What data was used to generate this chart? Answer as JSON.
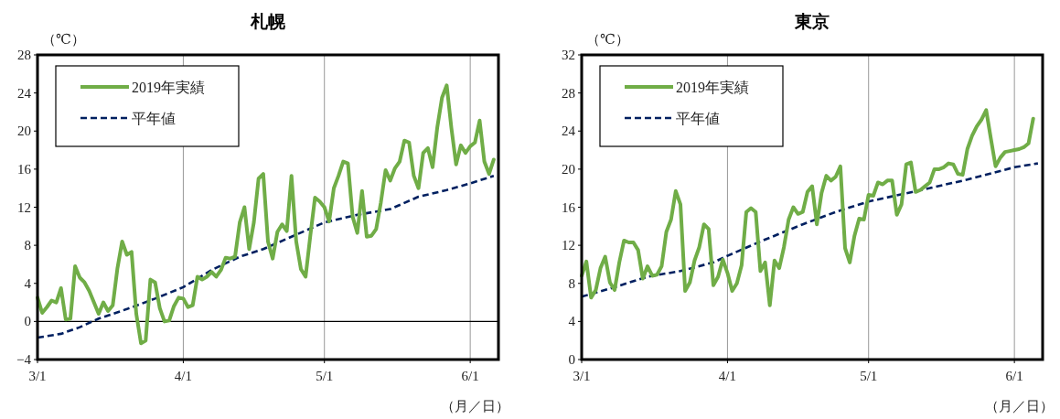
{
  "chart_data": [
    {
      "type": "line",
      "title": "札幌",
      "ylabel": "（℃）",
      "xlabel": "（月／日）",
      "xlim": [
        "--03-01",
        "--06-07"
      ],
      "xticks": [
        {
          "value": "--03-01",
          "label": "3/1"
        },
        {
          "value": "--04-01",
          "label": "4/1"
        },
        {
          "value": "--05-01",
          "label": "5/1"
        },
        {
          "value": "--06-01",
          "label": "6/1"
        }
      ],
      "ylim": [
        -4,
        28
      ],
      "yticks": [
        -4,
        0,
        4,
        8,
        12,
        16,
        20,
        24,
        28
      ],
      "grid": "x",
      "legend": "top left",
      "ref_lines": [
        {
          "axis": "y",
          "value": 0,
          "color": "#000000"
        }
      ],
      "series": [
        {
          "name": "2019年実績",
          "color": "#70ad47",
          "line_style": "solid",
          "x": [
            "--03-01",
            "--03-02",
            "--03-03",
            "--03-04",
            "--03-05",
            "--03-06",
            "--03-07",
            "--03-08",
            "--03-09",
            "--03-10",
            "--03-11",
            "--03-12",
            "--03-13",
            "--03-14",
            "--03-15",
            "--03-16",
            "--03-17",
            "--03-18",
            "--03-19",
            "--03-20",
            "--03-21",
            "--03-22",
            "--03-23",
            "--03-24",
            "--03-25",
            "--03-26",
            "--03-27",
            "--03-28",
            "--03-29",
            "--03-30",
            "--03-31",
            "--04-01",
            "--04-02",
            "--04-03",
            "--04-04",
            "--04-05",
            "--04-06",
            "--04-07",
            "--04-08",
            "--04-09",
            "--04-10",
            "--04-11",
            "--04-12",
            "--04-13",
            "--04-14",
            "--04-15",
            "--04-16",
            "--04-17",
            "--04-18",
            "--04-19",
            "--04-20",
            "--04-21",
            "--04-22",
            "--04-23",
            "--04-24",
            "--04-25",
            "--04-26",
            "--04-27",
            "--04-28",
            "--04-29",
            "--04-30",
            "--05-01",
            "--05-02",
            "--05-03",
            "--05-04",
            "--05-05",
            "--05-06",
            "--05-07",
            "--05-08",
            "--05-09",
            "--05-10",
            "--05-11",
            "--05-12",
            "--05-13",
            "--05-14",
            "--05-15",
            "--05-16",
            "--05-17",
            "--05-18",
            "--05-19",
            "--05-20",
            "--05-21",
            "--05-22",
            "--05-23",
            "--05-24",
            "--05-25",
            "--05-26",
            "--05-27",
            "--05-28",
            "--05-29",
            "--05-30",
            "--05-31",
            "--06-01",
            "--06-02",
            "--06-03",
            "--06-04",
            "--06-05",
            "--06-06"
          ],
          "values": [
            2.5,
            0.9,
            1.5,
            2.2,
            2.0,
            3.5,
            0.2,
            0.3,
            5.8,
            4.6,
            4.1,
            3.2,
            2.0,
            0.8,
            2.0,
            1.1,
            1.7,
            5.6,
            8.4,
            7.0,
            7.3,
            0.8,
            -2.3,
            -2.0,
            4.4,
            4.1,
            1.4,
            0.0,
            0.1,
            1.6,
            2.5,
            2.4,
            1.5,
            1.7,
            4.7,
            4.4,
            4.7,
            5.2,
            4.7,
            5.4,
            6.7,
            6.6,
            6.8,
            10.4,
            12.0,
            7.6,
            10.4,
            15.0,
            15.5,
            8.4,
            6.6,
            9.4,
            10.2,
            9.5,
            15.3,
            8.4,
            5.5,
            4.7,
            9.0,
            13.0,
            12.6,
            12.0,
            10.5,
            14.0,
            15.3,
            16.8,
            16.6,
            11.0,
            9.3,
            13.7,
            8.9,
            9.0,
            9.7,
            12.5,
            15.9,
            14.8,
            16.1,
            16.8,
            19.0,
            18.8,
            15.3,
            14.0,
            17.7,
            18.2,
            16.2,
            20.4,
            23.5,
            24.8,
            20.3,
            16.5,
            18.5,
            17.7,
            18.4,
            18.8,
            21.1,
            16.8,
            15.5,
            17.0
          ]
        },
        {
          "name": "平年値",
          "color": "#002060",
          "line_style": "dashed",
          "x": [
            "--03-01",
            "--03-06",
            "--03-10",
            "--03-14",
            "--03-20",
            "--03-26",
            "--04-01",
            "--04-07",
            "--04-13",
            "--04-18",
            "--04-24",
            "--05-01",
            "--05-08",
            "--05-15",
            "--05-21",
            "--05-27",
            "--06-01",
            "--06-06"
          ],
          "values": [
            -1.7,
            -1.3,
            -0.6,
            0.3,
            1.3,
            2.4,
            3.6,
            5.4,
            6.8,
            7.6,
            8.9,
            10.4,
            11.2,
            11.8,
            13.1,
            13.8,
            14.5,
            15.3
          ]
        }
      ]
    },
    {
      "type": "line",
      "title": "東京",
      "ylabel": "（℃）",
      "xlabel": "（月／日）",
      "xlim": [
        "--03-01",
        "--06-07"
      ],
      "xticks": [
        {
          "value": "--03-01",
          "label": "3/1"
        },
        {
          "value": "--04-01",
          "label": "4/1"
        },
        {
          "value": "--05-01",
          "label": "5/1"
        },
        {
          "value": "--06-01",
          "label": "6/1"
        }
      ],
      "ylim": [
        0,
        32
      ],
      "yticks": [
        0,
        4,
        8,
        12,
        16,
        20,
        24,
        28,
        32
      ],
      "grid": "x",
      "legend": "top left",
      "series": [
        {
          "name": "2019年実績",
          "color": "#70ad47",
          "line_style": "solid",
          "x": [
            "--03-01",
            "--03-02",
            "--03-03",
            "--03-04",
            "--03-05",
            "--03-06",
            "--03-07",
            "--03-08",
            "--03-09",
            "--03-10",
            "--03-11",
            "--03-12",
            "--03-13",
            "--03-14",
            "--03-15",
            "--03-16",
            "--03-17",
            "--03-18",
            "--03-19",
            "--03-20",
            "--03-21",
            "--03-22",
            "--03-23",
            "--03-24",
            "--03-25",
            "--03-26",
            "--03-27",
            "--03-28",
            "--03-29",
            "--03-30",
            "--03-31",
            "--04-01",
            "--04-02",
            "--04-03",
            "--04-04",
            "--04-05",
            "--04-06",
            "--04-07",
            "--04-08",
            "--04-09",
            "--04-10",
            "--04-11",
            "--04-12",
            "--04-13",
            "--04-14",
            "--04-15",
            "--04-16",
            "--04-17",
            "--04-18",
            "--04-19",
            "--04-20",
            "--04-21",
            "--04-22",
            "--04-23",
            "--04-24",
            "--04-25",
            "--04-26",
            "--04-27",
            "--04-28",
            "--04-29",
            "--04-30",
            "--05-01",
            "--05-02",
            "--05-03",
            "--05-04",
            "--05-05",
            "--05-06",
            "--05-07",
            "--05-08",
            "--05-09",
            "--05-10",
            "--05-11",
            "--05-12",
            "--05-13",
            "--05-14",
            "--05-15",
            "--05-16",
            "--05-17",
            "--05-18",
            "--05-19",
            "--05-20",
            "--05-21",
            "--05-22",
            "--05-23",
            "--05-24",
            "--05-25",
            "--05-26",
            "--05-27",
            "--05-28",
            "--05-29",
            "--05-30",
            "--05-31",
            "--06-01",
            "--06-02",
            "--06-03",
            "--06-04",
            "--06-05"
          ],
          "values": [
            8.8,
            10.3,
            6.5,
            7.3,
            9.6,
            10.8,
            8.1,
            7.3,
            10.2,
            12.5,
            12.3,
            12.3,
            11.5,
            8.5,
            9.8,
            8.8,
            8.9,
            9.8,
            13.4,
            14.7,
            17.7,
            16.3,
            7.2,
            8.1,
            10.4,
            11.8,
            14.2,
            13.7,
            7.8,
            8.7,
            10.5,
            9.1,
            7.2,
            8.0,
            9.9,
            15.5,
            15.9,
            15.5,
            9.3,
            10.2,
            5.7,
            10.4,
            9.6,
            11.8,
            14.7,
            16.0,
            15.3,
            15.5,
            17.6,
            18.2,
            14.2,
            17.5,
            19.3,
            18.8,
            19.2,
            20.3,
            11.7,
            10.2,
            13.0,
            14.8,
            14.7,
            17.3,
            17.2,
            18.6,
            18.4,
            18.8,
            18.8,
            15.2,
            16.3,
            20.5,
            20.7,
            17.6,
            17.8,
            18.2,
            18.6,
            20.0,
            20.0,
            20.2,
            20.6,
            20.5,
            19.5,
            19.4,
            22.1,
            23.5,
            24.5,
            25.2,
            26.2,
            23.2,
            20.3,
            21.2,
            21.8,
            21.9,
            22.0,
            22.1,
            22.3,
            22.7,
            25.3
          ]
        },
        {
          "name": "平年値",
          "color": "#002060",
          "line_style": "dashed",
          "x": [
            "--03-01",
            "--03-08",
            "--03-15",
            "--03-22",
            "--03-29",
            "--04-01",
            "--04-08",
            "--04-17",
            "--04-24",
            "--05-01",
            "--05-13",
            "--05-22",
            "--06-01",
            "--06-06"
          ],
          "values": [
            6.6,
            7.6,
            8.7,
            9.3,
            10.2,
            10.9,
            12.4,
            14.2,
            15.5,
            16.6,
            17.9,
            18.9,
            20.2,
            20.6
          ]
        }
      ]
    }
  ]
}
